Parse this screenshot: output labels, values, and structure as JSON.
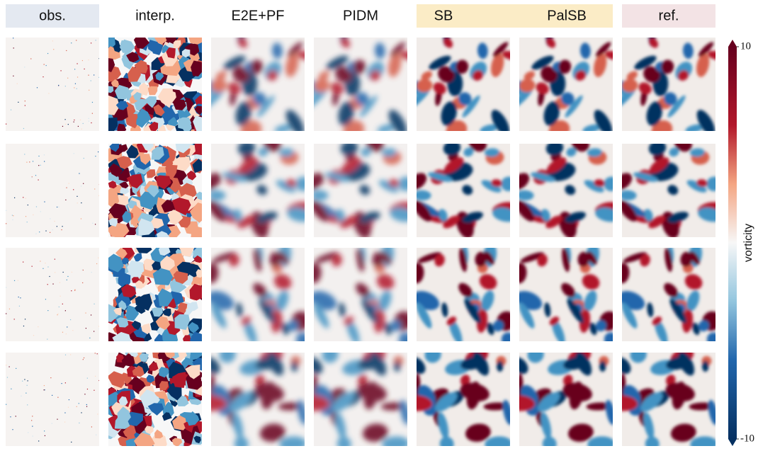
{
  "columns": [
    "obs.",
    "interp.",
    "E2E+PF",
    "PIDM",
    "SB",
    "PalSB",
    "ref."
  ],
  "colorbar": {
    "label": "vorticity",
    "lim": [
      -10,
      10
    ],
    "ticks": [
      10,
      -10
    ]
  }
}
